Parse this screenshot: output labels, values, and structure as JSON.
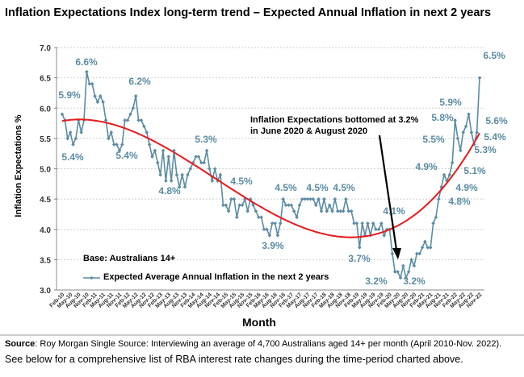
{
  "chart_data": {
    "type": "line",
    "title": "Inflation Expectations Index long-term trend – Expected Annual Inflation in next 2 years",
    "xlabel": "Month",
    "ylabel": "Inflation Expectations %",
    "ylim": [
      3.0,
      7.0
    ],
    "yticks": [
      "3.0",
      "3.5",
      "4.0",
      "4.5",
      "5.0",
      "5.5",
      "6.0",
      "6.5",
      "7.0"
    ],
    "grid": "horizontal dotted",
    "x_tick_labels": [
      "Feb-10",
      "May-10",
      "Aug-10",
      "Nov-10",
      "Feb-11",
      "May-11",
      "Aug-11",
      "Nov-11",
      "Feb-12",
      "May-12",
      "Aug-12",
      "Nov-12",
      "Feb-13",
      "May-13",
      "Aug-13",
      "Nov-13",
      "Feb-14",
      "May-14",
      "Aug-14",
      "Nov-14",
      "Feb-15",
      "May-15",
      "Aug-15",
      "Nov-15",
      "Feb-16",
      "May-16",
      "Aug-16",
      "Nov-16",
      "Feb-17",
      "May-17",
      "Aug-17",
      "Nov-17",
      "Feb-18",
      "May-18",
      "Aug-18",
      "Nov-18",
      "Feb-19",
      "May-19",
      "Aug-19",
      "Nov-19",
      "Feb-20",
      "May-20",
      "Aug-20",
      "Nov-20",
      "Feb-21",
      "May-21",
      "Aug-21",
      "Nov-21",
      "Feb-22",
      "May-22",
      "Aug-22",
      "Nov-22"
    ],
    "x_range": [
      "Feb-10",
      "Nov-22"
    ],
    "x_frequency": "monthly",
    "series": [
      {
        "name": "Expected Average Annual Inflation in the next 2 years",
        "color": "#5b8ca3",
        "marker": "diamond",
        "values": [
          5.9,
          5.8,
          5.5,
          5.6,
          5.4,
          5.5,
          5.8,
          5.6,
          5.8,
          6.6,
          6.4,
          6.4,
          6.2,
          6.1,
          6.2,
          6.1,
          5.8,
          5.5,
          5.6,
          5.4,
          5.4,
          5.3,
          5.4,
          5.8,
          5.8,
          5.9,
          6.0,
          6.2,
          5.8,
          5.8,
          5.7,
          5.6,
          5.4,
          5.2,
          5.3,
          5.1,
          4.9,
          5.3,
          4.8,
          5.2,
          4.8,
          5.3,
          4.9,
          4.7,
          4.9,
          4.7,
          4.9,
          5.0,
          5.1,
          5.2,
          5.2,
          5.1,
          5.1,
          5.3,
          5.0,
          4.8,
          5.0,
          4.8,
          4.9,
          4.4,
          4.4,
          4.3,
          4.5,
          4.5,
          4.2,
          4.4,
          4.4,
          4.5,
          4.3,
          4.5,
          4.4,
          4.3,
          4.2,
          4.2,
          4.0,
          4.0,
          3.9,
          4.1,
          4.1,
          3.9,
          4.1,
          4.5,
          4.4,
          4.4,
          4.4,
          4.3,
          4.2,
          4.4,
          4.5,
          4.5,
          4.5,
          4.5,
          4.5,
          4.4,
          4.5,
          4.3,
          4.5,
          4.3,
          4.4,
          4.3,
          4.5,
          4.3,
          4.3,
          4.3,
          4.5,
          4.3,
          4.3,
          4.1,
          4.1,
          3.7,
          4.1,
          3.9,
          4.1,
          3.9,
          4.1,
          4.0,
          4.0,
          4.1,
          3.9,
          4.0,
          4.0,
          3.6,
          3.3,
          3.3,
          3.2,
          3.4,
          3.2,
          3.3,
          3.5,
          3.4,
          3.6,
          3.6,
          3.7,
          3.8,
          3.7,
          3.7,
          4.1,
          4.2,
          4.5,
          4.7,
          4.9,
          4.8,
          4.9,
          5.1,
          5.8,
          5.5,
          5.3,
          5.6,
          5.7,
          5.9,
          5.6,
          5.4,
          5.6,
          6.5
        ]
      },
      {
        "name": "",
        "type": "polynomial trendline",
        "color": "#e8191b"
      }
    ],
    "data_labels": [
      "5.9%",
      "5.4%",
      "6.6%",
      "6.2%",
      "5.4%",
      "4.8%",
      "5.3%",
      "4.5%",
      "3.9%",
      "4.5%",
      "4.5%",
      "4.5%",
      "3.7%",
      "4.1%",
      "3.2%",
      "3.2%",
      "4.9%",
      "5.5%",
      "5.8%",
      "5.9%",
      "6.5%",
      "5.6%",
      "5.4%",
      "5.3%",
      "5.1%",
      "4.9%",
      "4.8%"
    ],
    "annotation": [
      "Inflation Expectations bottomed at 3.2%",
      "in June 2020 & August 2020"
    ],
    "legend": {
      "base": "Base: Australians 14+",
      "entry": "Expected Average Annual Inflation in the next 2 years",
      "placement": "bottom-left inside"
    }
  },
  "footer": {
    "source_label": "Source",
    "source_text": ": Roy Morgan Single Source: Interviewing an average of 4,700 Australians aged 14+ per month (April 2010-Nov. 2022).",
    "note": "See below for a comprehensive list of RBA interest rate changes during the time-period charted above."
  }
}
